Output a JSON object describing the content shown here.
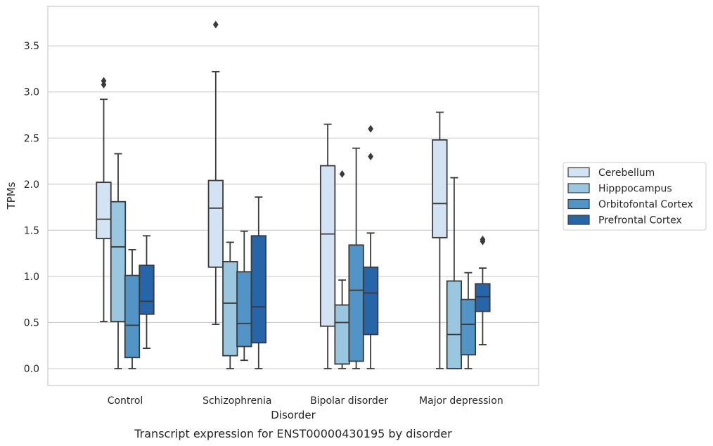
{
  "caption": "Transcript expression for ENST00000430195 by disorder",
  "chart_data": {
    "type": "box",
    "title": "",
    "xlabel": "Disorder",
    "ylabel": "TPMs",
    "ylim": [
      -0.18,
      3.9
    ],
    "yticks": [
      "0.0",
      "0.5",
      "1.0",
      "1.5",
      "2.0",
      "2.5",
      "3.0",
      "3.5"
    ],
    "grid": "horizontal",
    "legend_position": "right",
    "categories": [
      "Control",
      "Schizophrenia",
      "Bipolar disorder",
      "Major depression"
    ],
    "series": [
      {
        "name": "Cerebellum",
        "color": "#d4e3f3",
        "boxes": [
          {
            "whislo": 0.51,
            "q1": 1.41,
            "med": 1.62,
            "q3": 2.02,
            "whishi": 2.92,
            "fliers": [
              3.08,
              3.12
            ]
          },
          {
            "whislo": 0.48,
            "q1": 1.1,
            "med": 1.74,
            "q3": 2.04,
            "whishi": 3.22,
            "fliers": [
              3.73
            ]
          },
          {
            "whislo": 0.0,
            "q1": 0.46,
            "med": 1.46,
            "q3": 2.2,
            "whishi": 2.65,
            "fliers": []
          },
          {
            "whislo": 0.0,
            "q1": 1.42,
            "med": 1.79,
            "q3": 2.48,
            "whishi": 2.78,
            "fliers": []
          }
        ]
      },
      {
        "name": "Hipppocampus",
        "color": "#9ac6e0",
        "boxes": [
          {
            "whislo": 0.0,
            "q1": 0.51,
            "med": 1.32,
            "q3": 1.81,
            "whishi": 2.33,
            "fliers": []
          },
          {
            "whislo": 0.0,
            "q1": 0.14,
            "med": 0.71,
            "q3": 1.16,
            "whishi": 1.37,
            "fliers": []
          },
          {
            "whislo": 0.0,
            "q1": 0.05,
            "med": 0.5,
            "q3": 0.69,
            "whishi": 0.96,
            "fliers": [
              2.11
            ]
          },
          {
            "whislo": 0.0,
            "q1": 0.0,
            "med": 0.37,
            "q3": 0.95,
            "whishi": 2.07,
            "fliers": []
          }
        ]
      },
      {
        "name": "Orbitofontal Cortex",
        "color": "#5394c6",
        "boxes": [
          {
            "whislo": 0.0,
            "q1": 0.12,
            "med": 0.47,
            "q3": 1.01,
            "whishi": 1.29,
            "fliers": []
          },
          {
            "whislo": 0.09,
            "q1": 0.24,
            "med": 0.49,
            "q3": 1.05,
            "whishi": 1.49,
            "fliers": []
          },
          {
            "whislo": 0.0,
            "q1": 0.08,
            "med": 0.85,
            "q3": 1.34,
            "whishi": 2.39,
            "fliers": []
          },
          {
            "whislo": 0.0,
            "q1": 0.15,
            "med": 0.48,
            "q3": 0.75,
            "whishi": 1.04,
            "fliers": []
          }
        ]
      },
      {
        "name": "Prefrontal Cortex",
        "color": "#2665a8",
        "boxes": [
          {
            "whislo": 0.22,
            "q1": 0.59,
            "med": 0.73,
            "q3": 1.12,
            "whishi": 1.44,
            "fliers": []
          },
          {
            "whislo": 0.0,
            "q1": 0.28,
            "med": 0.67,
            "q3": 1.44,
            "whishi": 1.86,
            "fliers": []
          },
          {
            "whislo": 0.0,
            "q1": 0.37,
            "med": 0.82,
            "q3": 1.1,
            "whishi": 1.47,
            "fliers": [
              2.3,
              2.6
            ]
          },
          {
            "whislo": 0.26,
            "q1": 0.62,
            "med": 0.78,
            "q3": 0.92,
            "whishi": 1.09,
            "fliers": [
              1.38,
              1.4
            ]
          }
        ]
      }
    ]
  }
}
